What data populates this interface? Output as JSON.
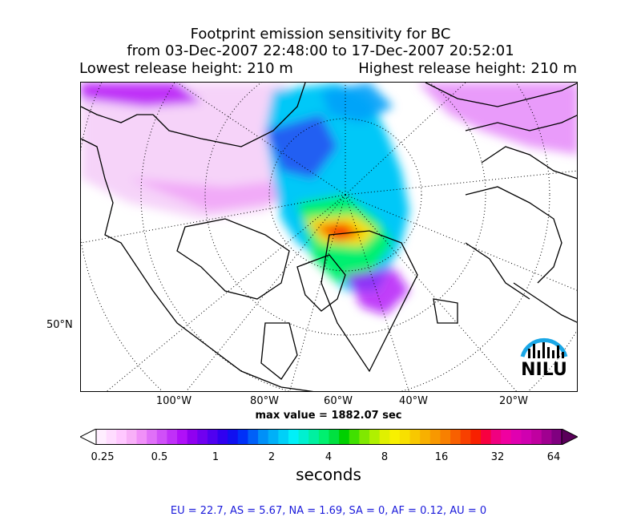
{
  "title": {
    "line1": "Footprint emission sensitivity for BC",
    "line2": "from 03-Dec-2007 22:48:00 to 17-Dec-2007 20:52:01",
    "lowest": "Lowest release height: 210 m",
    "highest": "Highest release height: 210 m"
  },
  "map": {
    "lat_label": "50°N",
    "lon_labels": [
      "100°W",
      "80°W",
      "60°W",
      "40°W",
      "20°W"
    ],
    "max_value": "max value = 1882.07 sec",
    "logo_text": "NILU",
    "colors": {
      "land_outline": "#000000",
      "graticule": "#000000",
      "logo_blue": "#1aa7e6"
    }
  },
  "colorbar": {
    "ticks": [
      "0.25",
      "0.5",
      "1",
      "2",
      "4",
      "8",
      "16",
      "32",
      "64"
    ],
    "unit": "seconds",
    "colors": [
      "#ffeeff",
      "#ffdcff",
      "#ffc8ff",
      "#f8b0f8",
      "#f090f8",
      "#e070f8",
      "#d050f8",
      "#c030f8",
      "#b010f8",
      "#9000f0",
      "#7000f0",
      "#5000f0",
      "#3000f0",
      "#1010f0",
      "#0030f8",
      "#0060f8",
      "#0090f8",
      "#00b0f8",
      "#00d0f8",
      "#00f0f8",
      "#00f0d0",
      "#00f0a0",
      "#00f070",
      "#00e040",
      "#00d000",
      "#40e000",
      "#80e800",
      "#b0f000",
      "#e0f000",
      "#f8f000",
      "#f8e000",
      "#f8c800",
      "#f8b000",
      "#f89800",
      "#f88000",
      "#f86000",
      "#f84000",
      "#f82000",
      "#f80040",
      "#f00080",
      "#f000a0",
      "#e000b0",
      "#d000b0",
      "#c000a0",
      "#a00090",
      "#800080"
    ]
  },
  "regions": "EU = 22.7,  AS = 5.67,  NA = 1.69,  SA = 0,  AF = 0.12,  AU = 0"
}
